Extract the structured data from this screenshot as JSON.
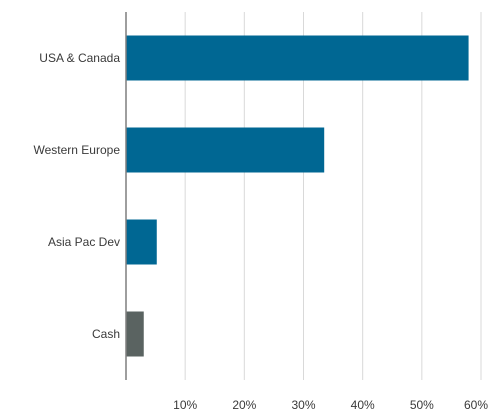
{
  "chart_data": {
    "type": "bar",
    "orientation": "horizontal",
    "categories": [
      "USA & Canada",
      "Western Europe",
      "Asia Pac Dev",
      "Cash"
    ],
    "values": [
      57.9,
      33.5,
      5.2,
      3.0
    ],
    "bar_colors": [
      "#006793",
      "#006793",
      "#006793",
      "#5a6361"
    ],
    "xlim": [
      0,
      60
    ],
    "xticks": [
      10,
      20,
      30,
      40,
      50,
      60
    ],
    "xtick_labels": [
      "10%",
      "20%",
      "30%",
      "40%",
      "50%",
      "60%"
    ],
    "grid": "vertical",
    "title": "",
    "xlabel": "",
    "ylabel": "",
    "legend": "none"
  },
  "colors": {
    "grid": "#d9d9d9",
    "axis": "#7f7f7f",
    "text": "#3a3a3a"
  }
}
